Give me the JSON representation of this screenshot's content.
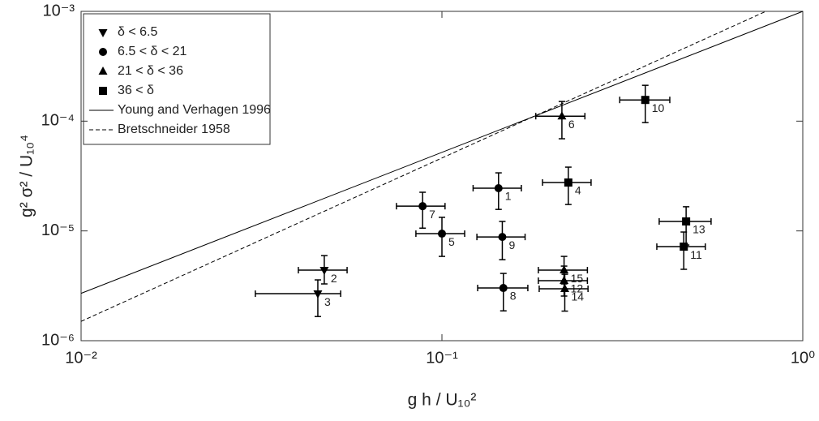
{
  "chart_data": {
    "type": "scatter",
    "xlabel": "g h / U₁₀²",
    "ylabel": "g² σ² / U₁₀⁴",
    "xscale": "log",
    "yscale": "log",
    "xlim": [
      0.01,
      1
    ],
    "ylim": [
      1e-06,
      0.001
    ],
    "xticks": [
      {
        "value": 0.01,
        "label": "10⁻²"
      },
      {
        "value": 0.1,
        "label": "10⁻¹"
      },
      {
        "value": 1,
        "label": "10⁰"
      }
    ],
    "yticks": [
      {
        "value": 1e-06,
        "label": "10⁻⁶"
      },
      {
        "value": 1e-05,
        "label": "10⁻⁵"
      },
      {
        "value": 0.0001,
        "label": "10⁻⁴"
      },
      {
        "value": 0.001,
        "label": "10⁻³"
      }
    ],
    "legend": "upper left",
    "series": [
      {
        "name": "δ < 6.5",
        "marker": "triangle-down",
        "color": "#000000",
        "labels": [
          "2",
          "3"
        ],
        "x": [
          0.0472,
          0.0453
        ],
        "x_low": [
          0.04,
          0.0304
        ],
        "x_high": [
          0.0546,
          0.0524
        ],
        "values": [
          4.39e-06,
          2.68e-06
        ],
        "y_low": [
          3.29e-06,
          1.66e-06
        ],
        "y_high": [
          5.96e-06,
          3.58e-06
        ]
      },
      {
        "name": "6.5 < δ < 21",
        "marker": "circle",
        "color": "#000000",
        "labels": [
          "1",
          "5",
          "7",
          "8",
          "9"
        ],
        "x": [
          0.1435,
          0.1,
          0.0884,
          0.148,
          0.147
        ],
        "x_low": [
          0.122,
          0.0847,
          0.0748,
          0.1256,
          0.125
        ],
        "x_high": [
          0.166,
          0.1156,
          0.102,
          0.173,
          0.17
        ],
        "values": [
          2.45e-05,
          9.44e-06,
          1.68e-05,
          3.02e-06,
          8.81e-06
        ],
        "y_low": [
          1.57e-05,
          5.86e-06,
          1.06e-05,
          1.87e-06,
          5.47e-06
        ],
        "y_high": [
          3.38e-05,
          1.33e-05,
          2.25e-05,
          4.1e-06,
          1.22e-05
        ]
      },
      {
        "name": "21 < δ < 36",
        "marker": "triangle-up",
        "color": "#000000",
        "labels": [
          "6",
          "15",
          "12",
          "14"
        ],
        "x": [
          0.215,
          0.218,
          0.218,
          0.219
        ],
        "x_low": [
          0.182,
          0.185,
          0.185,
          0.186
        ],
        "x_high": [
          0.249,
          0.253,
          0.253,
          0.254
        ],
        "values": [
          0.000111,
          4.39e-06,
          3.52e-06,
          2.97e-06
        ],
        "y_low": [
          6.91e-05,
          3.29e-06,
          2.55e-06,
          1.86e-06
        ],
        "y_high": [
          0.000151,
          5.86e-06,
          4.78e-06,
          4.03e-06
        ]
      },
      {
        "name": "36 < δ",
        "marker": "square",
        "color": "#000000",
        "labels": [
          "4",
          "10",
          "11",
          "13"
        ],
        "x": [
          0.224,
          0.366,
          0.468,
          0.475
        ],
        "x_low": [
          0.19,
          0.311,
          0.394,
          0.4
        ],
        "x_high": [
          0.259,
          0.428,
          0.537,
          0.557
        ],
        "values": [
          2.76e-05,
          0.000156,
          7.19e-06,
          1.22e-05
        ],
        "y_low": [
          1.74e-05,
          9.7e-05,
          4.47e-06,
          7.44e-06
        ],
        "y_high": [
          3.81e-05,
          0.000212,
          9.77e-06,
          1.66e-05
        ]
      }
    ],
    "lines": [
      {
        "name": "Young and Verhagen 1996",
        "style": "solid",
        "color": "#000000",
        "x": [
          0.01,
          1
        ],
        "values": [
          2.7e-06,
          0.001
        ]
      },
      {
        "name": "Bretschneider 1958",
        "style": "dashed",
        "color": "#000000",
        "x": [
          0.01,
          0.79
        ],
        "values": [
          1.5e-06,
          0.001
        ]
      }
    ]
  }
}
